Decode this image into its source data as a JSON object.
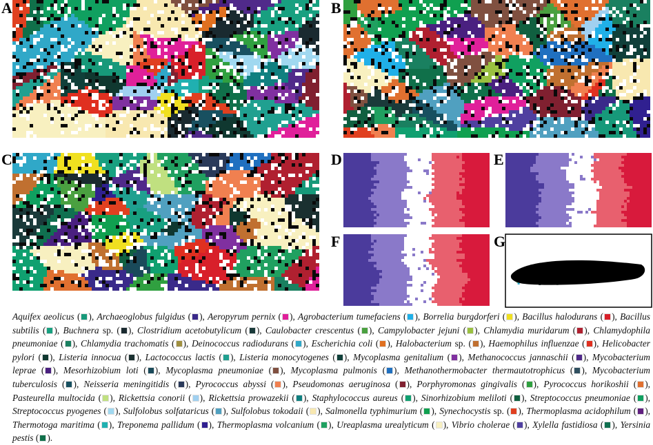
{
  "panels": [
    {
      "label": "A"
    },
    {
      "label": "B"
    },
    {
      "label": "C"
    },
    {
      "label": "D"
    },
    {
      "label": "E"
    },
    {
      "label": "F"
    },
    {
      "label": "G"
    }
  ],
  "legend": {
    "species": [
      {
        "name": "Aquifex aeolicus",
        "color": "#17997a"
      },
      {
        "name": "Archaeoglobus fulgidus",
        "color": "#3a2a8a"
      },
      {
        "name": "Aeropyrum pernix",
        "color": "#e0209a"
      },
      {
        "name": "Agrobacterium tumefaciens",
        "color": "#20b0e8"
      },
      {
        "name": "Borrelia burgdorferi",
        "color": "#f0e020"
      },
      {
        "name": "Bacillus halodurans",
        "color": "#d8202a"
      },
      {
        "name": "Bacillus subtilis",
        "color": "#18a080"
      },
      {
        "name": "Buchnera",
        "qualifier": "sp.",
        "color": "#1a2a30"
      },
      {
        "name": "Clostridium acetobutylicum",
        "color": "#1a3a3a"
      },
      {
        "name": "Caulobacter crescentus",
        "color": "#4aa040"
      },
      {
        "name": "Campylobacter jejuni",
        "color": "#9ac040"
      },
      {
        "name": "Chlamydia muridarum",
        "color": "#b02030"
      },
      {
        "name": "Chlamydophila pneumoniae",
        "color": "#1a8060"
      },
      {
        "name": "Chlamydia trachomatis",
        "color": "#a09040"
      },
      {
        "name": "Deinococcus radiodurans",
        "color": "#30a8c8"
      },
      {
        "name": "Escherichia coli",
        "color": "#e07020"
      },
      {
        "name": "Halobacterium",
        "qualifier": "sp.",
        "color": "#c07030"
      },
      {
        "name": "Haemophilus influenzae",
        "color": "#e03020"
      },
      {
        "name": "Helicobacter pylori",
        "color": "#103830"
      },
      {
        "name": "Listeria innocua",
        "color": "#1a3030"
      },
      {
        "name": "Lactococcus lactis",
        "color": "#20a090"
      },
      {
        "name": "Listeria monocytogenes",
        "color": "#10403a"
      },
      {
        "name": "Mycoplasma genitalium",
        "color": "#8030a0"
      },
      {
        "name": "Methanococcus jannaschii",
        "color": "#502a8a"
      },
      {
        "name": "Mycobacterium leprae",
        "color": "#4a2080"
      },
      {
        "name": "Mesorhizobium loti",
        "color": "#1a4a5a"
      },
      {
        "name": "Mycoplasma pneumoniae",
        "color": "#805040"
      },
      {
        "name": "Mycoplasma pulmonis",
        "color": "#2070c0"
      },
      {
        "name": "Methanothermobacter thermautotrophicus",
        "color": "#305060"
      },
      {
        "name": "Mycobacterium tuberculosis",
        "color": "#185060"
      },
      {
        "name": "Neisseria meningitidis",
        "color": "#2a3a5a"
      },
      {
        "name": "Pyrococcus abyssi",
        "color": "#f08050"
      },
      {
        "name": "Pseudomonas aeruginosa",
        "color": "#802030"
      },
      {
        "name": "Porphyromonas gingivalis",
        "color": "#30a040"
      },
      {
        "name": "Pyrococcus horikoshii",
        "color": "#e07030"
      },
      {
        "name": "Pasteurella multocida",
        "color": "#c0e080"
      },
      {
        "name": "Rickettsia conorii",
        "color": "#a0d0f0"
      },
      {
        "name": "Rickettsia prowazekii",
        "color": "#108080"
      },
      {
        "name": "Staphylococcus aureus",
        "color": "#10a070"
      },
      {
        "name": "Sinorhizobium meliloti",
        "color": "#106040"
      },
      {
        "name": "Streptococcus pneumoniae",
        "color": "#10a060"
      },
      {
        "name": "Streptococcus pyogenes",
        "color": "#a0d8f0"
      },
      {
        "name": "Sulfolobus solfataricus",
        "color": "#50a0c0"
      },
      {
        "name": "Sulfolobus tokodaii",
        "color": "#f8e8b0"
      },
      {
        "name": "Salmonella typhimurium",
        "color": "#10a050"
      },
      {
        "name": "Synechocystis",
        "qualifier": "sp.",
        "color": "#e04020"
      },
      {
        "name": "Thermoplasma acidophilum",
        "color": "#602080"
      },
      {
        "name": "Thermotoga maritima",
        "color": "#20b0b0"
      },
      {
        "name": "Treponema pallidum",
        "color": "#302090"
      },
      {
        "name": "Thermoplasma volcanium",
        "color": "#20a060"
      },
      {
        "name": "Ureaplasma urealyticum",
        "color": "#f8f0c0"
      },
      {
        "name": "Vibrio cholerae",
        "color": "#5040a0"
      },
      {
        "name": "Xylella fastidiosa",
        "color": "#107050"
      },
      {
        "name": "Yersinia pestis",
        "color": "#10704a"
      }
    ]
  }
}
